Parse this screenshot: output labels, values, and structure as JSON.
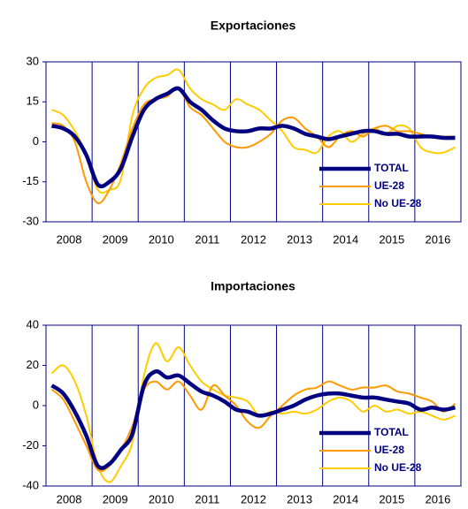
{
  "chart_data": [
    {
      "type": "line",
      "title": "Exportaciones",
      "categories": [
        null,
        "2008",
        null,
        null,
        null,
        "2009",
        null,
        null,
        null,
        "2010",
        null,
        null,
        null,
        "2011",
        null,
        null,
        null,
        "2012",
        null,
        null,
        null,
        "2013",
        null,
        null,
        null,
        "2014",
        null,
        null,
        null,
        "2015",
        null,
        null,
        null,
        "2016",
        null,
        null
      ],
      "series": [
        {
          "name": "TOTAL",
          "color": "#000080",
          "values": [
            6,
            5,
            2,
            -5,
            -16,
            -15,
            -10,
            2,
            12,
            16,
            18,
            20,
            15,
            12,
            8,
            5,
            4,
            4,
            5,
            5,
            6,
            5,
            3,
            2,
            1,
            2,
            3,
            4,
            4,
            3,
            3,
            2,
            2,
            2,
            1.5,
            1.5
          ]
        },
        {
          "name": "UE-28",
          "color": "#ff9900",
          "values": [
            7,
            6,
            0,
            -15,
            -23,
            -18,
            -8,
            5,
            14,
            16,
            17,
            20,
            13,
            10,
            5,
            0,
            -2,
            -2,
            0,
            3,
            8,
            9,
            5,
            2,
            -2,
            2,
            4,
            2,
            5,
            6,
            4,
            4,
            3,
            2,
            2,
            2
          ]
        },
        {
          "name": "No UE-28",
          "color": "#ffcc00",
          "values": [
            12,
            10,
            4,
            -5,
            -18,
            -18,
            -14,
            10,
            20,
            24,
            25,
            27,
            20,
            16,
            14,
            12,
            16,
            14,
            12,
            8,
            4,
            -2,
            -3,
            -4,
            2,
            4,
            0,
            3,
            5,
            3,
            6,
            5,
            -2,
            -4,
            -4,
            -2
          ]
        }
      ],
      "ylim": [
        -30,
        30
      ],
      "yticks": [
        -30,
        -15,
        0,
        15,
        30
      ],
      "grid": false,
      "legend": "lower right"
    },
    {
      "type": "line",
      "title": "Importaciones",
      "categories": [
        null,
        "2008",
        null,
        null,
        null,
        "2009",
        null,
        null,
        null,
        "2010",
        null,
        null,
        null,
        "2011",
        null,
        null,
        null,
        "2012",
        null,
        null,
        null,
        "2013",
        null,
        null,
        null,
        "2014",
        null,
        null,
        null,
        "2015",
        null,
        null,
        null,
        "2016",
        null,
        null
      ],
      "series": [
        {
          "name": "TOTAL",
          "color": "#000080",
          "values": [
            10,
            6,
            -3,
            -15,
            -30,
            -29,
            -22,
            -14,
            10,
            17,
            14,
            15,
            11,
            7,
            5,
            2,
            -2,
            -3,
            -5,
            -4,
            -2,
            0,
            3,
            5,
            6,
            6,
            5,
            4,
            4,
            3,
            2,
            1,
            -2,
            -1,
            -2,
            -1
          ]
        },
        {
          "name": "UE-28",
          "color": "#ff9900",
          "values": [
            8,
            3,
            -8,
            -20,
            -32,
            -30,
            -22,
            -10,
            8,
            12,
            8,
            12,
            5,
            -2,
            10,
            5,
            0,
            -8,
            -11,
            -5,
            0,
            5,
            8,
            9,
            12,
            10,
            8,
            9,
            9,
            10,
            7,
            6,
            4,
            2,
            -3,
            1
          ]
        },
        {
          "name": "No UE-28",
          "color": "#ffcc00",
          "values": [
            16,
            20,
            12,
            -5,
            -30,
            -38,
            -30,
            -18,
            15,
            31,
            22,
            29,
            20,
            12,
            8,
            5,
            4,
            2,
            -5,
            -3,
            -4,
            -3,
            -4,
            -2,
            2,
            4,
            2,
            -3,
            0,
            -3,
            -2,
            -4,
            -3,
            -5,
            -7,
            -5
          ]
        }
      ],
      "ylim": [
        -40,
        40
      ],
      "yticks": [
        -40,
        -20,
        0,
        20,
        40
      ],
      "grid": false,
      "legend": "lower right"
    }
  ]
}
